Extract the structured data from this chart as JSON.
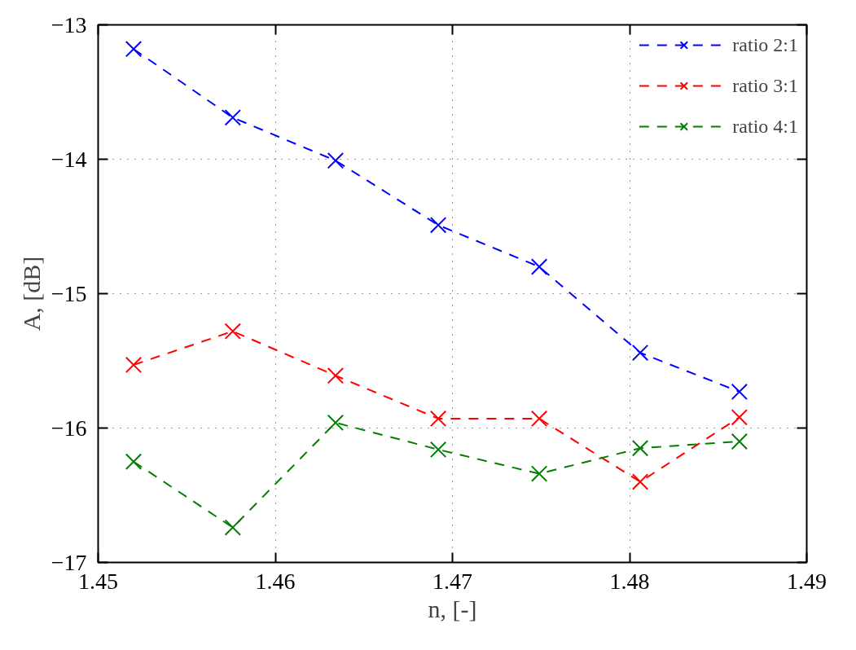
{
  "chart_data": {
    "type": "line",
    "xlabel": "n, [-]",
    "ylabel": "A, [dB]",
    "x": [
      1.452,
      1.4576,
      1.4634,
      1.4692,
      1.4749,
      1.4806,
      1.4862
    ],
    "series": [
      {
        "name": "ratio 2:1",
        "color": "#0000ff",
        "values": [
          -13.18,
          -13.69,
          -14.01,
          -14.49,
          -14.8,
          -15.44,
          -15.73
        ]
      },
      {
        "name": "ratio 3:1",
        "color": "#ff0000",
        "values": [
          -15.53,
          -15.28,
          -15.61,
          -15.93,
          -15.93,
          -16.4,
          -15.92
        ]
      },
      {
        "name": "ratio 4:1",
        "color": "#008000",
        "values": [
          -16.25,
          -16.74,
          -15.96,
          -16.16,
          -16.34,
          -16.15,
          -16.1
        ]
      }
    ],
    "xlim": [
      1.45,
      1.49
    ],
    "ylim": [
      -17,
      -13
    ],
    "xticks": [
      1.45,
      1.46,
      1.47,
      1.48,
      1.49
    ],
    "yticks": [
      -17,
      -16,
      -15,
      -14,
      -13
    ],
    "grid": true,
    "legend": "top right",
    "marker": "cross",
    "line_style": "dashed"
  }
}
